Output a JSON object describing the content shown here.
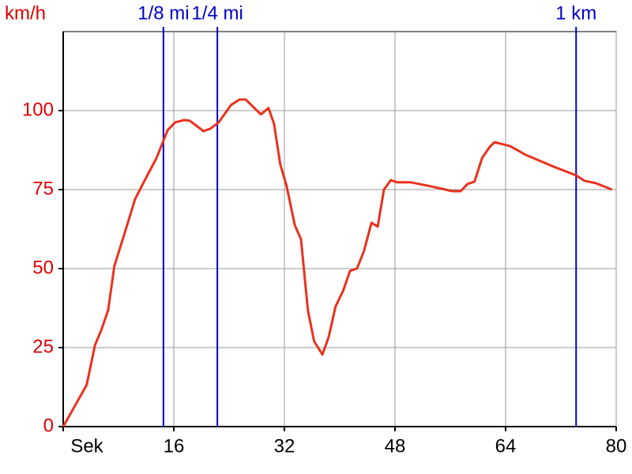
{
  "chart_data": {
    "type": "line",
    "y_label": "km/h",
    "x_label": "Sek",
    "x": [
      0,
      3.4,
      4.6,
      5.5,
      6.5,
      7.4,
      8.9,
      10.4,
      12,
      13.5,
      15.1,
      16.2,
      17.5,
      18.3,
      19.4,
      20.3,
      21.3,
      22.5,
      24.3,
      25.5,
      26.4,
      28.6,
      29.7,
      30.5,
      31.4,
      32.3,
      33.5,
      34.4,
      35.4,
      36.3,
      37.5,
      38.4,
      39.4,
      40.5,
      41.5,
      42.5,
      43.5,
      44.6,
      45.5,
      46.4,
      47.4,
      48.3,
      50.3,
      52.6,
      54.3,
      56.3,
      57.5,
      58.5,
      59.5,
      60.6,
      61.7,
      62.4,
      64.6,
      65.7,
      66.9,
      70.9,
      74.2,
      75.4,
      77.1,
      79.4
    ],
    "series": [
      {
        "color": "#e8321e",
        "values": [
          0,
          13.2,
          25.8,
          30.5,
          36.8,
          50.8,
          61.3,
          72,
          78.8,
          85,
          93.8,
          96.3,
          97,
          96.8,
          95,
          93.5,
          94.3,
          96.3,
          101.8,
          103.5,
          103.5,
          98.8,
          100.8,
          95.8,
          83,
          76.3,
          63.8,
          59.3,
          36.8,
          27,
          22.8,
          28.3,
          38,
          43,
          49.3,
          50,
          55.5,
          64.5,
          63.3,
          75,
          78,
          77.3,
          77.3,
          76.3,
          75.5,
          74.5,
          74.5,
          76.8,
          77.5,
          85,
          88.5,
          90,
          88.8,
          87.5,
          86,
          82.3,
          79.5,
          77.8,
          77,
          75
        ]
      }
    ],
    "xlim": [
      0,
      80
    ],
    "xticks": [
      16,
      32,
      48,
      64,
      80
    ],
    "ylim": [
      0,
      125
    ],
    "yticks": [
      0,
      25,
      50,
      75,
      100
    ],
    "grid": true,
    "markers": [
      {
        "label": "1/8 mi",
        "x": 14.5
      },
      {
        "label": "1/4 mi",
        "x": 22.3
      },
      {
        "label": "1 km",
        "x": 74.2
      }
    ],
    "marker_color": "#0000cc",
    "ytick_color": "#dd0000"
  }
}
